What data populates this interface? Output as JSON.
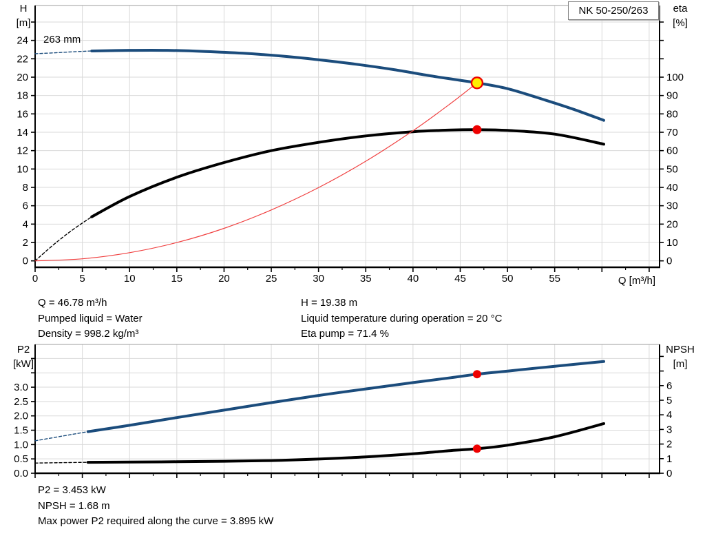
{
  "colors": {
    "curve_blue": "#1b4c7c",
    "curve_black": "#000000",
    "system_red": "#f04040",
    "marker_red": "#ee0000",
    "marker_yellow": "#ffee00",
    "grid": "#d9d9d9",
    "axis": "#000000",
    "border_top": "#9c9c9c"
  },
  "chart_data": [
    {
      "type": "line",
      "title_box": "NK 50-250/263",
      "curve_label": "263 mm",
      "box": {
        "l": 51,
        "t": 8,
        "r": 958,
        "b": 388
      },
      "x": {
        "title": "Q [m³/h]",
        "min": 0,
        "max": 66.1,
        "minor_step": 2.5,
        "major_step": 5,
        "tick_max": 65,
        "grid_step": 5,
        "label_step": 5,
        "labels": [
          "0",
          "5",
          "10",
          "15",
          "20",
          "25",
          "30",
          "35",
          "40",
          "45",
          "50",
          "55"
        ]
      },
      "y_left": {
        "title": "H\n[m]",
        "min": -0.7,
        "max": 27.8,
        "tick_step": 2,
        "tick_max": 26,
        "grid_step": 2,
        "label_step": 2,
        "labels": [
          "0",
          "2",
          "4",
          "6",
          "8",
          "10",
          "12",
          "14",
          "16",
          "18",
          "20",
          "22",
          "24"
        ]
      },
      "y_right": {
        "title": "eta\n[%]",
        "min": -3.5,
        "max": 139,
        "tick_step": 10,
        "tick_max": 130,
        "label_step": 10,
        "labels": [
          "0",
          "10",
          "20",
          "30",
          "40",
          "50",
          "60",
          "70",
          "80",
          "90",
          "100"
        ]
      },
      "series": [
        {
          "name": "head-curve-extension",
          "axis": "L",
          "color": "curve_blue",
          "width": 1.4,
          "dash": "4 3",
          "points": [
            [
              0,
              22.55
            ],
            [
              2,
              22.65
            ],
            [
              4,
              22.76
            ],
            [
              6,
              22.85
            ]
          ]
        },
        {
          "name": "head-curve",
          "axis": "L",
          "color": "curve_blue",
          "width": 4,
          "points": [
            [
              6,
              22.85
            ],
            [
              10,
              22.92
            ],
            [
              14,
              22.92
            ],
            [
              18,
              22.8
            ],
            [
              22,
              22.6
            ],
            [
              26,
              22.3
            ],
            [
              30,
              21.9
            ],
            [
              34,
              21.4
            ],
            [
              38,
              20.82
            ],
            [
              42,
              20.12
            ],
            [
              46.78,
              19.38
            ],
            [
              50,
              18.75
            ],
            [
              54,
              17.5
            ],
            [
              57,
              16.5
            ],
            [
              60.2,
              15.3
            ]
          ]
        },
        {
          "name": "efficiency-curve-extension",
          "axis": "R",
          "color": "curve_black",
          "width": 1.4,
          "dash": "4 3",
          "points": [
            [
              0,
              0
            ],
            [
              2,
              9
            ],
            [
              4,
              17
            ],
            [
              6,
              24
            ]
          ]
        },
        {
          "name": "efficiency-curve",
          "axis": "R",
          "color": "curve_black",
          "width": 4,
          "points": [
            [
              6,
              24
            ],
            [
              10,
              35
            ],
            [
              15,
              45.5
            ],
            [
              20,
              53.5
            ],
            [
              25,
              60
            ],
            [
              30,
              64.5
            ],
            [
              35,
              68
            ],
            [
              40,
              70.3
            ],
            [
              44,
              71.2
            ],
            [
              46.78,
              71.4
            ],
            [
              50,
              71
            ],
            [
              55,
              69
            ],
            [
              60.2,
              63.5
            ]
          ]
        },
        {
          "name": "system-curve",
          "axis": "L",
          "color": "system_red",
          "width": 1.2,
          "points": [
            [
              0,
              0
            ],
            [
              5,
              0.22
            ],
            [
              10,
              0.89
            ],
            [
              15,
              1.99
            ],
            [
              20,
              3.54
            ],
            [
              25,
              5.54
            ],
            [
              30,
              7.97
            ],
            [
              35,
              10.85
            ],
            [
              40,
              14.17
            ],
            [
              44,
              17.15
            ],
            [
              46.78,
              19.38
            ]
          ]
        }
      ],
      "markers": [
        {
          "name": "duty-point-head",
          "q": 46.78,
          "v": 19.38,
          "axis": "L",
          "r": 8,
          "fill": "marker_yellow",
          "stroke": "marker_red",
          "sw": 2.4
        },
        {
          "name": "duty-point-efficiency",
          "q": 46.78,
          "v": 71.4,
          "axis": "R",
          "r": 6.5,
          "fill": "marker_red"
        }
      ]
    },
    {
      "type": "line",
      "box": {
        "l": 51,
        "t": 5,
        "r": 958,
        "b": 192
      },
      "x": {
        "min": 0,
        "max": 66.1,
        "minor_step": 2.5,
        "major_step": 5,
        "tick_max": 65,
        "grid_step": 5,
        "label_step": 5,
        "labels": []
      },
      "y_left": {
        "title": "P2\n[kW]",
        "min": 0,
        "max": 4.49,
        "tick_step": 0.5,
        "tick_max": 4,
        "grid_step": 0.5,
        "label_step": 0.5,
        "labels": [
          "0.0",
          "0.5",
          "1.0",
          "1.5",
          "2.0",
          "2.5",
          "3.0"
        ]
      },
      "y_right": {
        "title": "NPSH\n[m]",
        "min": 0,
        "max": 8.82,
        "tick_step": 1,
        "tick_max": 8,
        "label_step": 1,
        "labels": [
          "0",
          "1",
          "2",
          "3",
          "4",
          "5",
          "6"
        ]
      },
      "series": [
        {
          "name": "power-curve-extension",
          "axis": "L",
          "color": "curve_blue",
          "width": 1.4,
          "dash": "4 3",
          "points": [
            [
              0,
              1.13
            ],
            [
              5.6,
              1.45
            ]
          ]
        },
        {
          "name": "power-curve",
          "axis": "L",
          "color": "curve_blue",
          "width": 4,
          "points": [
            [
              5.6,
              1.45
            ],
            [
              10,
              1.67
            ],
            [
              15,
              1.94
            ],
            [
              20,
              2.2
            ],
            [
              25,
              2.46
            ],
            [
              30,
              2.71
            ],
            [
              35,
              2.94
            ],
            [
              40,
              3.16
            ],
            [
              44,
              3.33
            ],
            [
              46.78,
              3.453
            ],
            [
              50,
              3.56
            ],
            [
              55,
              3.73
            ],
            [
              60.2,
              3.895
            ]
          ]
        },
        {
          "name": "npsh-curve-extension",
          "axis": "R",
          "color": "curve_black",
          "width": 1.4,
          "dash": "4 3",
          "points": [
            [
              0,
              0.7
            ],
            [
              5.6,
              0.75
            ]
          ]
        },
        {
          "name": "npsh-curve",
          "axis": "R",
          "color": "curve_black",
          "width": 4,
          "points": [
            [
              5.6,
              0.75
            ],
            [
              10,
              0.77
            ],
            [
              15,
              0.79
            ],
            [
              20,
              0.82
            ],
            [
              25,
              0.87
            ],
            [
              30,
              0.97
            ],
            [
              35,
              1.12
            ],
            [
              40,
              1.33
            ],
            [
              44,
              1.55
            ],
            [
              46.78,
              1.68
            ],
            [
              50,
              1.92
            ],
            [
              55,
              2.5
            ],
            [
              60.2,
              3.4
            ]
          ]
        }
      ],
      "markers": [
        {
          "name": "duty-point-power",
          "q": 46.78,
          "v": 3.453,
          "axis": "L",
          "r": 6,
          "fill": "marker_red"
        },
        {
          "name": "duty-point-npsh",
          "q": 46.78,
          "v": 1.68,
          "axis": "R",
          "r": 6,
          "fill": "marker_red"
        }
      ]
    }
  ],
  "info_top": {
    "left": [
      "Q = 46.78 m³/h",
      "Pumped liquid = Water",
      "Density = 998.2 kg/m³"
    ],
    "right": [
      "H = 19.38 m",
      "Liquid temperature during operation = 20 °C",
      "Eta pump = 71.4 %"
    ]
  },
  "info_bottom": [
    "P2 = 3.453 kW",
    "NPSH = 1.68 m",
    "Max power P2 required along the curve = 3.895 kW"
  ]
}
